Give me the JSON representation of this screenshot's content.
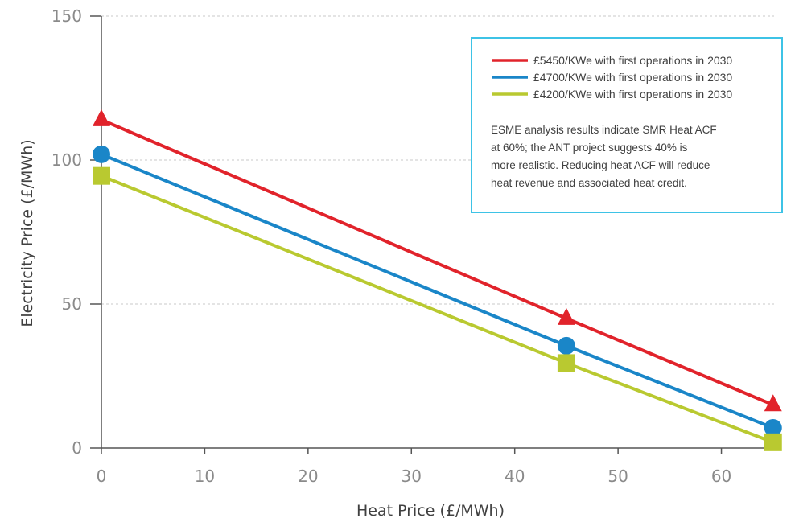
{
  "chart_data": {
    "type": "line",
    "title": "",
    "xlabel": "Heat Price (£/MWh)",
    "ylabel": "Electricity Price (£/MWh)",
    "xlim": [
      0,
      66
    ],
    "ylim": [
      0,
      150
    ],
    "xticks": [
      "0",
      "10",
      "20",
      "30",
      "40",
      "50",
      "60"
    ],
    "yticks": [
      "0",
      "50",
      "100",
      "150"
    ],
    "grid": "horizontal-dashed",
    "legend_position": "top-right",
    "x": [
      0,
      45,
      65
    ],
    "series": [
      {
        "name": "£5450/KWe with first operations in 2030",
        "values": [
          114,
          45,
          15
        ],
        "color": "#e1232b",
        "marker": "triangle"
      },
      {
        "name": "£4700/KWe with first operations in 2030",
        "values": [
          102,
          35.5,
          7
        ],
        "color": "#1a86c8",
        "marker": "circle"
      },
      {
        "name": "£4200/KWe with first operations in 2030",
        "values": [
          94.5,
          29.5,
          2
        ],
        "color": "#b9c930",
        "marker": "square"
      }
    ],
    "annotation_lines": [
      "ESME analysis results indicate SMR Heat ACF",
      "at 60%; the ANT project suggests 40% is",
      "more realistic. Reducing heat ACF will reduce",
      "heat revenue and associated heat credit."
    ],
    "legend_border_color": "#3ec3e6"
  }
}
